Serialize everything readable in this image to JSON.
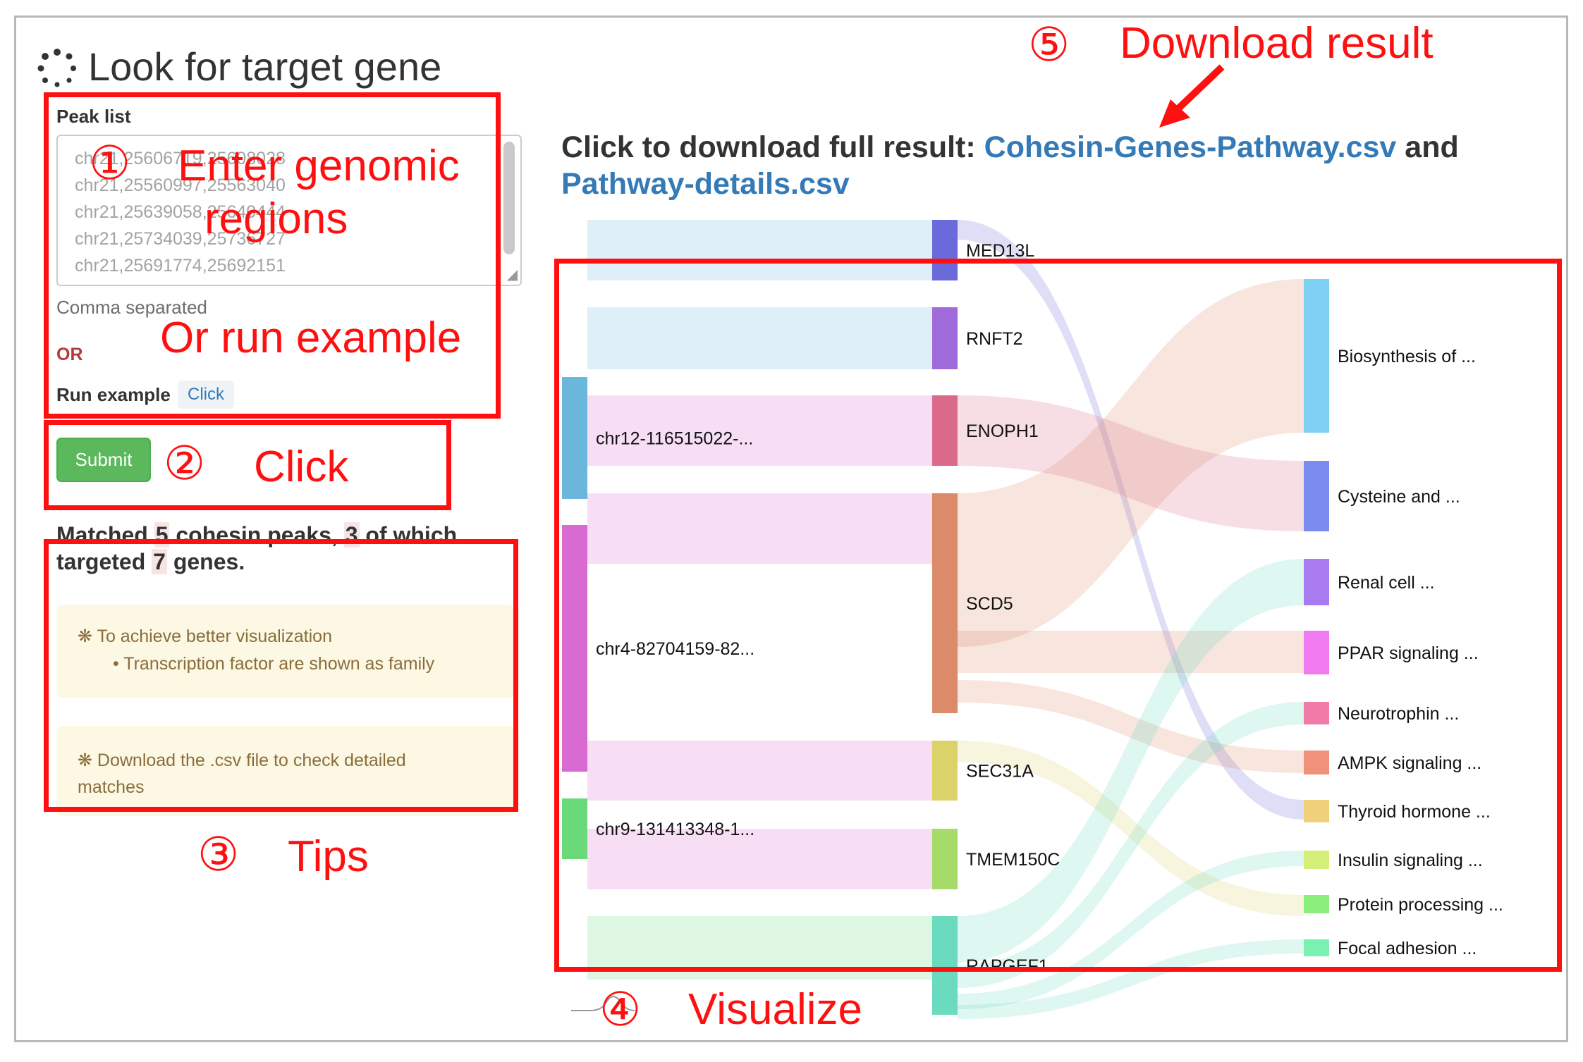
{
  "page": {
    "title": "Look for target gene",
    "peak_list_label": "Peak list",
    "peak_lines": [
      "chr21,25606719,25608028",
      "chr21,25560997,25563040",
      "chr21,25639058,25640444",
      "chr21,25734039,25736727",
      "chr21,25691774,25692151"
    ],
    "comma_hint": "Comma separated",
    "or_label": "OR",
    "run_example_label": "Run example",
    "click_button": "Click",
    "submit_button": "Submit",
    "matched": {
      "t1": "Matched ",
      "n1": "5",
      "t2": " cohesin peaks, ",
      "n2": "3",
      "t3": " of which targeted ",
      "n3": "7",
      "t4": " genes."
    },
    "tip1": {
      "title": "To achieve better visualization",
      "bullet": "Transcription factor are shown as family"
    },
    "tip2": {
      "line1": "Download the .csv file to check detailed",
      "line2": "matches"
    },
    "download": {
      "prefix": "Click to download full result: ",
      "link1": "Cohesin-Genes-Pathway.csv",
      "middle": " and",
      "link2": "Pathway-details.csv"
    }
  },
  "annotations": {
    "a1": "①",
    "a1_text1": "Enter genomic",
    "a1_text2": "regions",
    "a1_text3": "Or run example",
    "a2": "②",
    "a2_text": "Click",
    "a3": "③",
    "a3_text": "Tips",
    "a4": "④",
    "a4_text": "Visualize",
    "a5": "⑤",
    "a5_text": "Download result"
  },
  "sankey": {
    "peaks": [
      {
        "label": "chr12-116515022-...",
        "color": "#6bb7dc"
      },
      {
        "label": "chr4-82704159-82...",
        "color": "#d96ad1"
      },
      {
        "label": "chr9-131413348-1...",
        "color": "#6ad97a"
      }
    ],
    "genes": [
      {
        "label": "MED13L",
        "color": "#6a6adb"
      },
      {
        "label": "RNFT2",
        "color": "#a06adb"
      },
      {
        "label": "ENOPH1",
        "color": "#db6a8a"
      },
      {
        "label": "SCD5",
        "color": "#db8a6a"
      },
      {
        "label": "SEC31A",
        "color": "#dbd36a"
      },
      {
        "label": "TMEM150C",
        "color": "#a6db6a"
      },
      {
        "label": "RAPGEF1",
        "color": "#6adbbf"
      }
    ],
    "pathways": [
      {
        "label": "Biosynthesis of ...",
        "color": "#7fd0f5"
      },
      {
        "label": "Cysteine and ...",
        "color": "#7b8cf0"
      },
      {
        "label": "Renal cell ...",
        "color": "#a97bf0"
      },
      {
        "label": "PPAR signaling ...",
        "color": "#f07bf0"
      },
      {
        "label": "Neurotrophin ...",
        "color": "#f07ba8"
      },
      {
        "label": "AMPK signaling ...",
        "color": "#f0927b"
      },
      {
        "label": "Thyroid hormone ...",
        "color": "#f0d07b"
      },
      {
        "label": "Insulin signaling ...",
        "color": "#d4f07b"
      },
      {
        "label": "Protein processing ...",
        "color": "#8bf07b"
      },
      {
        "label": "Focal adhesion ...",
        "color": "#7bf0b3"
      }
    ]
  }
}
